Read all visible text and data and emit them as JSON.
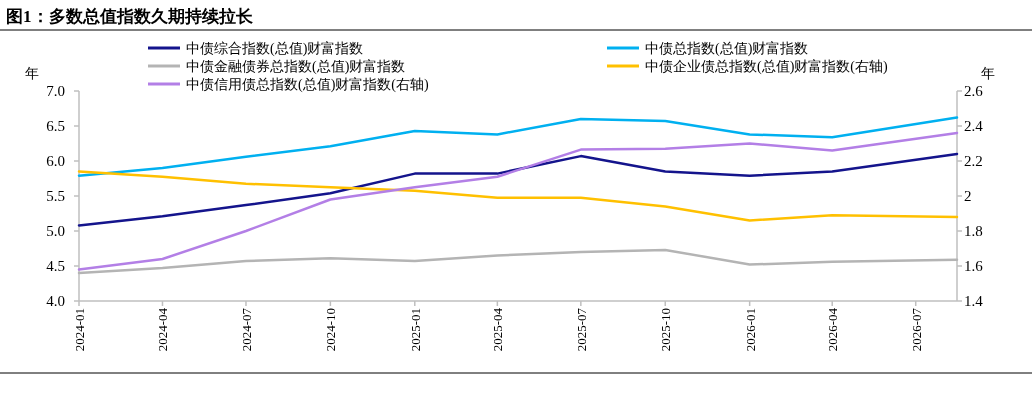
{
  "chart_data": {
    "type": "line",
    "title": "图1：多数总值指数久期持续拉长",
    "ylabel": "年",
    "y2label": "年",
    "x": [
      "2024-01",
      "2024-04",
      "2024-07",
      "2024-10",
      "2025-01",
      "2025-04",
      "2025-07",
      "2025-10",
      "2026-01",
      "2026-04",
      "2026-08-15"
    ],
    "xlim": [
      "2024-01",
      "2026-08-15"
    ],
    "xticks": [
      "2024-01",
      "2024-04",
      "2024-07",
      "2024-10",
      "2025-01",
      "2025-04",
      "2025-07",
      "2025-10",
      "2026-01",
      "2026-04",
      "2026-07"
    ],
    "ylim": [
      4,
      7
    ],
    "yticks": [
      {
        "value": 4,
        "label": "4.0"
      },
      {
        "value": 4.5,
        "label": "4.5"
      },
      {
        "value": 5,
        "label": "5.0"
      },
      {
        "value": 5.5,
        "label": "5.5"
      },
      {
        "value": 6,
        "label": "6.0"
      },
      {
        "value": 6.5,
        "label": "6.5"
      },
      {
        "value": 7,
        "label": "7.0"
      }
    ],
    "y2lim": [
      1.4,
      2.6
    ],
    "y2ticks": [
      1.4,
      1.6,
      1.8,
      2,
      2.2,
      2.4,
      2.6
    ],
    "legend": "top",
    "grid": false,
    "marker": "none",
    "line_style": "solid",
    "series": [
      {
        "name": "中债综合指数(总值)财富指数",
        "color": "#14148c",
        "values": [
          5.08,
          5.21,
          5.37,
          5.54,
          5.82,
          5.82,
          6.07,
          5.85,
          5.79,
          5.85,
          6.1
        ]
      },
      {
        "name": "中债总指数(总值)财富指数",
        "color": "#00b0f0",
        "values": [
          5.79,
          5.9,
          6.06,
          6.21,
          6.43,
          6.38,
          6.6,
          6.57,
          6.38,
          6.34,
          6.62
        ]
      },
      {
        "name": "中债金融债券总指数(总值)财富指数",
        "color": "#b4b4b4",
        "values": [
          4.4,
          4.47,
          4.57,
          4.61,
          4.57,
          4.65,
          4.7,
          4.73,
          4.52,
          4.56,
          4.59
        ]
      },
      {
        "name": "中债企业债总指数(总值)财富指数(右轴)",
        "color": "#ffc000",
        "axis": "y2",
        "values": [
          2.14,
          2.11,
          2.07,
          2.05,
          2.03,
          1.99,
          1.99,
          1.94,
          1.86,
          1.89,
          1.88
        ]
      },
      {
        "name": "中债信用债总指数(总值)财富指数(右轴)",
        "color": "#b37fe6",
        "axis": "y2",
        "values": [
          1.58,
          1.64,
          1.8,
          1.98,
          2.05,
          2.11,
          2.265,
          2.27,
          2.3,
          2.26,
          2.36
        ]
      }
    ]
  }
}
